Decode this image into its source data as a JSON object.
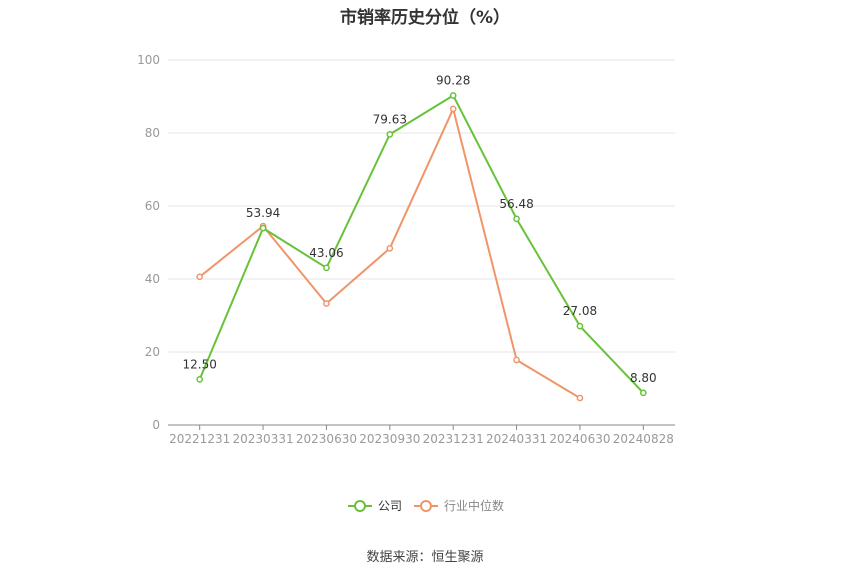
{
  "chart_data": {
    "type": "line",
    "title": "市销率历史分位（%）",
    "source": "数据来源：恒生聚源",
    "x": [
      "20221231",
      "20230331",
      "20230630",
      "20230930",
      "20231231",
      "20240331",
      "20240630",
      "20240828"
    ],
    "ylim": [
      0,
      100
    ],
    "yticks": [
      0,
      20,
      40,
      60,
      80,
      100
    ],
    "grid": true,
    "legend_position": "bottom-center",
    "series": [
      {
        "name": "公司",
        "color": "#67c23a",
        "values": [
          12.5,
          53.94,
          43.06,
          79.63,
          90.28,
          56.48,
          27.08,
          8.8
        ],
        "labels": [
          "12.50",
          "53.94",
          "43.06",
          "79.63",
          "90.28",
          "56.48",
          "27.08",
          "8.80"
        ]
      },
      {
        "name": "行业中位数",
        "color": "#f0956a",
        "values": [
          40.6,
          54.5,
          33.3,
          48.4,
          86.6,
          17.8,
          7.4,
          null
        ]
      }
    ]
  }
}
